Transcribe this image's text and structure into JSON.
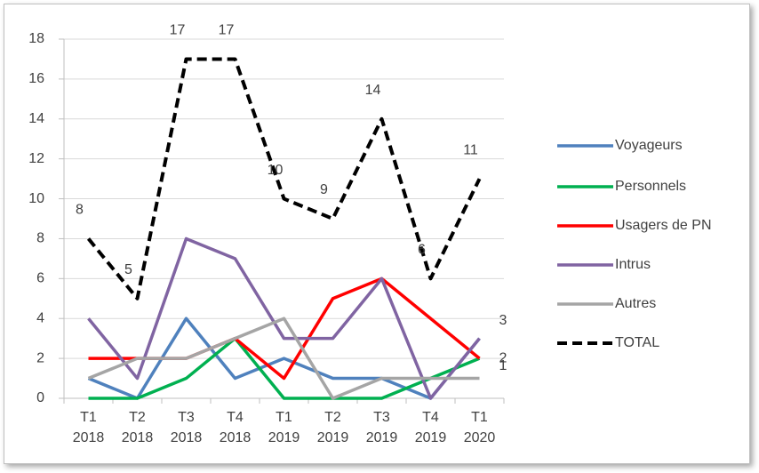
{
  "chart_data": {
    "type": "line",
    "categories": [
      [
        "T1",
        "2018"
      ],
      [
        "T2",
        "2018"
      ],
      [
        "T3",
        "2018"
      ],
      [
        "T4",
        "2018"
      ],
      [
        "T1",
        "2019"
      ],
      [
        "T2",
        "2019"
      ],
      [
        "T3",
        "2019"
      ],
      [
        "T4",
        "2019"
      ],
      [
        "T1",
        "2020"
      ]
    ],
    "series": [
      {
        "name": "Voyageurs",
        "color": "#4f81bd",
        "values": [
          1,
          0,
          4,
          1,
          2,
          1,
          1,
          0,
          3
        ]
      },
      {
        "name": "Personnels",
        "color": "#00b050",
        "values": [
          0,
          0,
          1,
          3,
          0,
          0,
          0,
          1,
          2
        ],
        "label_last": true
      },
      {
        "name": "Usagers de PN",
        "color": "#ff0000",
        "values": [
          2,
          2,
          2,
          3,
          1,
          5,
          6,
          4,
          2
        ]
      },
      {
        "name": "Intrus",
        "color": "#8064a2",
        "values": [
          4,
          1,
          8,
          7,
          3,
          3,
          6,
          0,
          3
        ],
        "label_last": true
      },
      {
        "name": "Autres",
        "color": "#a5a5a5",
        "values": [
          1,
          2,
          2,
          3,
          4,
          0,
          1,
          1,
          1
        ],
        "label_last": true
      },
      {
        "name": "TOTAL",
        "color": "#000000",
        "dashed": true,
        "labels": true,
        "values": [
          8,
          5,
          17,
          17,
          10,
          9,
          14,
          6,
          11
        ]
      }
    ],
    "ylim": [
      0,
      18
    ],
    "yticks": [
      0,
      2,
      4,
      6,
      8,
      10,
      12,
      14,
      16,
      18
    ],
    "grid": true,
    "legend": "right"
  }
}
